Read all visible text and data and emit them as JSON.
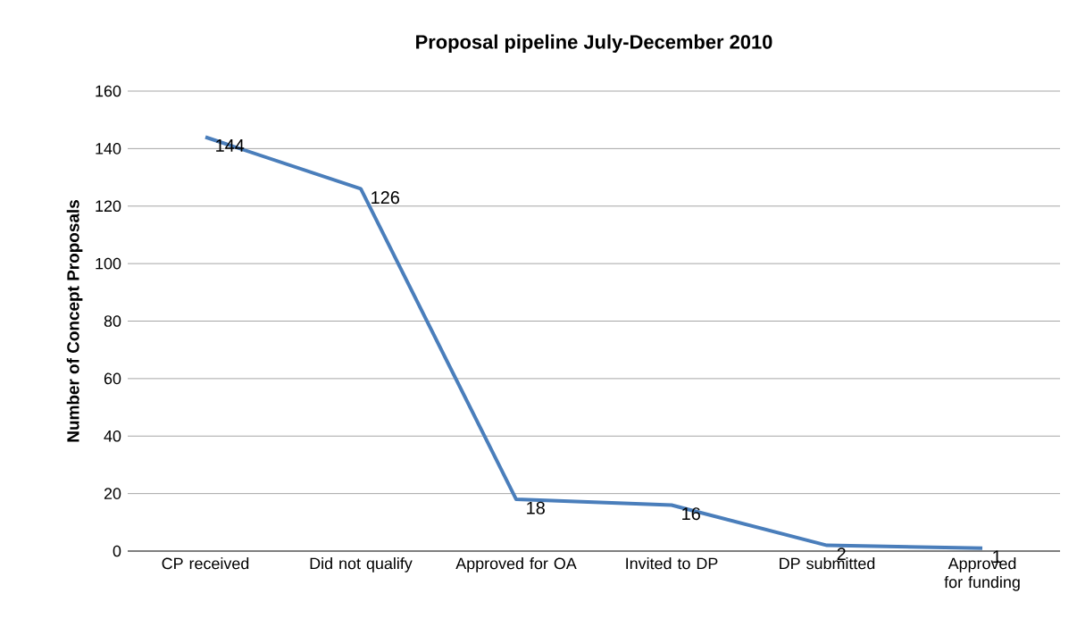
{
  "chart_data": {
    "type": "line",
    "title": "Proposal pipeline July-December 2010",
    "ylabel": "Number of Concept Proposals",
    "categories": [
      "CP received",
      "Did not qualify",
      "Approved for OA",
      "Invited to DP",
      "DP submitted",
      "Approved for funding"
    ],
    "values": [
      144,
      126,
      18,
      16,
      2,
      1
    ],
    "color": "#4a7ebb",
    "ylim": [
      0,
      160
    ],
    "yticks": [
      0,
      20,
      40,
      60,
      80,
      100,
      120,
      140,
      160
    ],
    "grid": "y",
    "data_labels": true,
    "marker": "none"
  }
}
